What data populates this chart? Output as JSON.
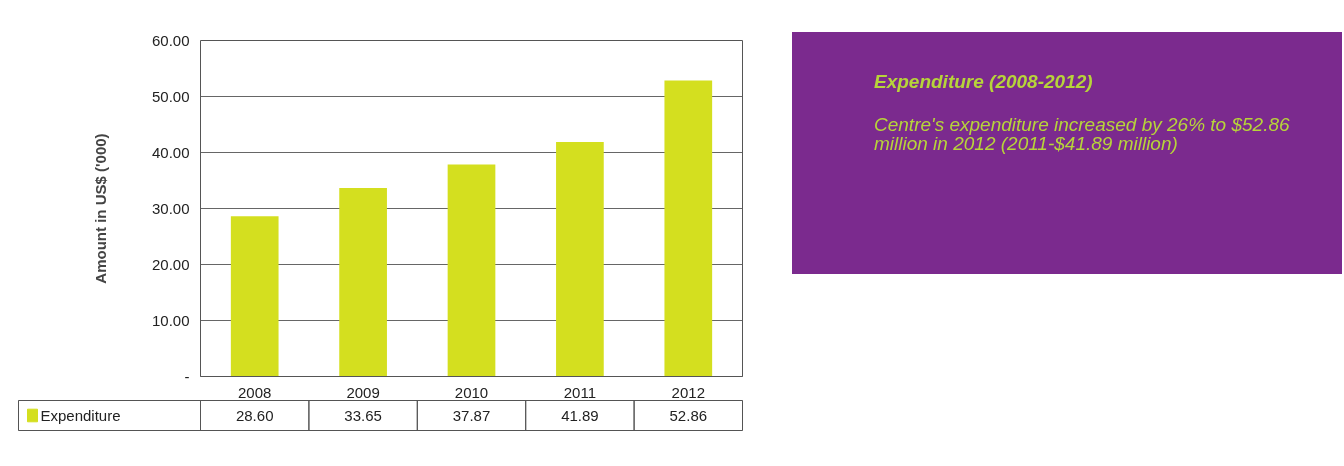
{
  "chart_data": {
    "type": "bar",
    "title": "Expenditure (2008-2012)",
    "ylabel": "Amount in US$ ('000)",
    "categories": [
      "2008",
      "2009",
      "2010",
      "2011",
      "2012"
    ],
    "series": [
      {
        "name": "Expenditure",
        "color": "#d4df1f",
        "values": [
          28.6,
          33.65,
          37.87,
          41.89,
          52.86
        ],
        "value_labels": [
          "28.60",
          "33.65",
          "37.87",
          "41.89",
          "52.86"
        ]
      }
    ],
    "ylim": [
      0,
      60
    ],
    "yticks": [
      {
        "value": 0,
        "label": "-"
      },
      {
        "value": 10,
        "label": "10.00"
      },
      {
        "value": 20,
        "label": "20.00"
      },
      {
        "value": 30,
        "label": "30.00"
      },
      {
        "value": 40,
        "label": "40.00"
      },
      {
        "value": 50,
        "label": "50.00"
      },
      {
        "value": 60,
        "label": "60.00"
      }
    ],
    "grid": "y",
    "legend": "bottom left",
    "annotations": [
      "Centre's expenditure increased by 26% to $52.86 million in 2012 (2011-$41.89 million)"
    ]
  }
}
